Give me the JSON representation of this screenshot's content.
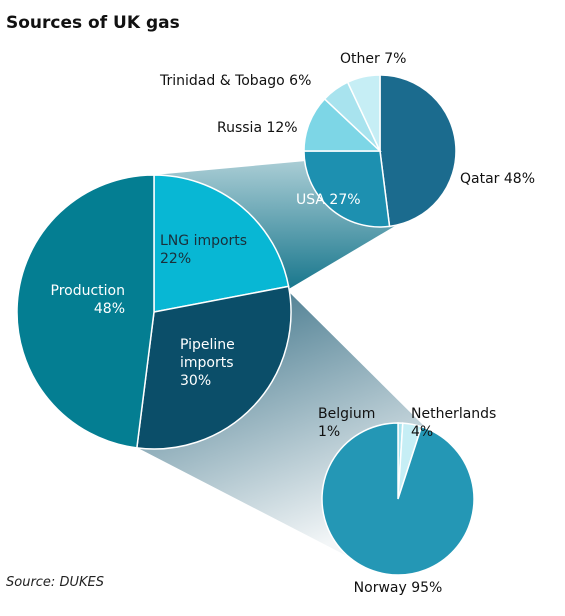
{
  "chart_data": [
    {
      "type": "pie",
      "id": "main",
      "categories": [
        "LNG imports",
        "Pipeline imports",
        "Production"
      ],
      "values": [
        22,
        30,
        48
      ],
      "labels": [
        {
          "lines": [
            "LNG imports",
            "22%"
          ]
        },
        {
          "lines": [
            "Pipeline",
            "imports",
            "30%"
          ]
        },
        {
          "lines": [
            "Production",
            "48%"
          ]
        }
      ],
      "colors": [
        "#08b7d4",
        "#0b4e69",
        "#047e92"
      ]
    },
    {
      "type": "pie",
      "id": "lng",
      "categories": [
        "Qatar",
        "USA",
        "Russia",
        "Trinidad & Tobago",
        "Other"
      ],
      "values": [
        48,
        27,
        12,
        6,
        7
      ],
      "labels": [
        {
          "lines": [
            "Qatar 48%"
          ]
        },
        {
          "lines": [
            "USA 27%"
          ]
        },
        {
          "lines": [
            "Russia 12%"
          ]
        },
        {
          "lines": [
            "Trinidad & Tobago 6%"
          ]
        },
        {
          "lines": [
            "Other 7%"
          ]
        }
      ],
      "colors": [
        "#1b6b8e",
        "#1d90b0",
        "#7dd6e6",
        "#a8e3ee",
        "#c6eef5"
      ]
    },
    {
      "type": "pie",
      "id": "pipeline",
      "categories": [
        "Belgium",
        "Netherlands",
        "Norway"
      ],
      "values": [
        1,
        4,
        95
      ],
      "labels": [
        {
          "lines": [
            "Belgium",
            "1%"
          ]
        },
        {
          "lines": [
            "Netherlands",
            "4%"
          ]
        },
        {
          "lines": [
            "Norway 95%"
          ]
        }
      ],
      "colors": [
        "#a8e3ee",
        "#c6eef5",
        "#2497b5"
      ]
    }
  ],
  "title": "Sources of UK gas",
  "source": "Source: DUKES"
}
